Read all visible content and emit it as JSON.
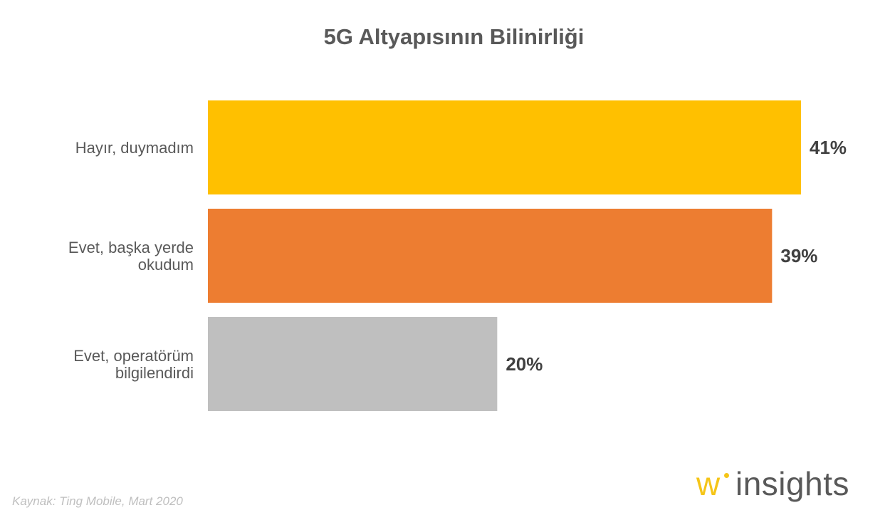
{
  "chart_data": {
    "type": "bar",
    "orientation": "horizontal",
    "title": "5G Altyapısının Bilinirliği",
    "categories": [
      [
        "Hayır, duymadım"
      ],
      [
        "Evet, başka yerde",
        "okudum"
      ],
      [
        "Evet, operatörüm",
        "bilgilendirdi"
      ]
    ],
    "values": [
      41,
      39,
      20
    ],
    "value_labels": [
      "41%",
      "39%",
      "20%"
    ],
    "colors": [
      "#FFC000",
      "#ED7D31",
      "#BFBFBF"
    ],
    "xlim": [
      0,
      41
    ],
    "grid": false,
    "legend": "none"
  },
  "source": "Kaynak: Ting Mobile, Mart 2020",
  "logo": {
    "mark": "w",
    "text": "insights",
    "mark_color": "#F5C518",
    "text_color": "#595959"
  }
}
